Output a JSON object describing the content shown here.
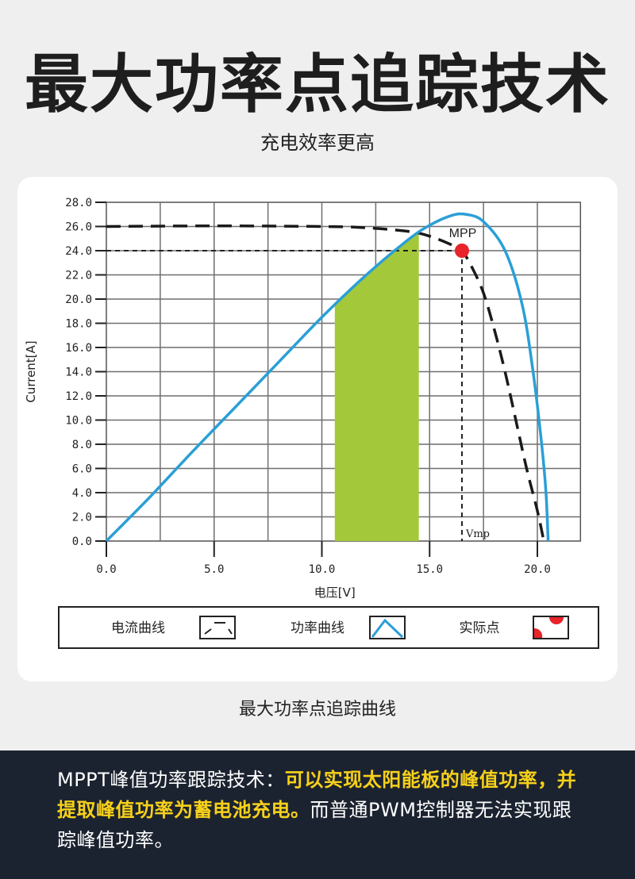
{
  "header": {
    "title": "最大功率点追踪技术",
    "subtitle": "充电效率更高"
  },
  "caption": "最大功率点追踪曲线",
  "footer": {
    "text_part1": "MPPT峰值功率跟踪技术：",
    "text_highlight": "可以实现太阳能板的峰值功率，并提取峰值功率为蓄电池充电。",
    "text_part2": "而普通PWM控制器无法实现跟踪峰值功率。"
  },
  "colors": {
    "power_curve": "#2a9fd6",
    "current_curve": "#1a1a1a",
    "highlight_area": "#a3c93a",
    "mpp_point": "#e8232a",
    "footer_bg": "#1c2330",
    "footer_highlight": "#f7d11a"
  },
  "chart_data": {
    "type": "line",
    "xlabel": "电压[V]",
    "ylabel": "Current[A]",
    "xlim": [
      0,
      22
    ],
    "ylim": [
      0,
      28
    ],
    "x_ticks": [
      "0.0",
      "5.0",
      "10.0",
      "15.0",
      "20.0"
    ],
    "y_ticks": [
      "0.0",
      "2.0",
      "4.0",
      "6.0",
      "8.0",
      "10.0",
      "12.0",
      "14.0",
      "16.0",
      "18.0",
      "20.0",
      "22.0",
      "24.0",
      "26.0",
      "28.0"
    ],
    "grid": true,
    "series": [
      {
        "name": "电流曲线",
        "style": "dashed",
        "points": [
          [
            0,
            26
          ],
          [
            5,
            26.05
          ],
          [
            10,
            26
          ],
          [
            12,
            25.9
          ],
          [
            14,
            25.6
          ],
          [
            15,
            25.2
          ],
          [
            16,
            24.5
          ],
          [
            16.5,
            24
          ],
          [
            17,
            22.5
          ],
          [
            17.5,
            20.5
          ],
          [
            18,
            17.5
          ],
          [
            18.5,
            14
          ],
          [
            19,
            10
          ],
          [
            19.5,
            6
          ],
          [
            20,
            2.5
          ],
          [
            20.3,
            0
          ]
        ]
      },
      {
        "name": "功率曲线",
        "style": "solid",
        "points": [
          [
            0,
            0
          ],
          [
            2,
            3.6
          ],
          [
            4,
            7.4
          ],
          [
            6,
            11.1
          ],
          [
            8,
            14.8
          ],
          [
            10,
            18.5
          ],
          [
            12,
            21.9
          ],
          [
            14,
            24.9
          ],
          [
            15,
            26.1
          ],
          [
            16,
            26.9
          ],
          [
            16.7,
            27.0
          ],
          [
            17.5,
            26.4
          ],
          [
            18.5,
            24
          ],
          [
            19.3,
            19.5
          ],
          [
            19.8,
            14
          ],
          [
            20.2,
            8
          ],
          [
            20.4,
            4
          ],
          [
            20.5,
            0
          ]
        ]
      }
    ],
    "highlight_region": {
      "x_from": 10.6,
      "x_to": 14.5
    },
    "mpp": {
      "x": 16.5,
      "y": 24,
      "label": "MPP",
      "vlabel": "Vmp"
    },
    "legend": [
      {
        "label": "电流曲线"
      },
      {
        "label": "功率曲线"
      },
      {
        "label": "实际点"
      }
    ]
  }
}
